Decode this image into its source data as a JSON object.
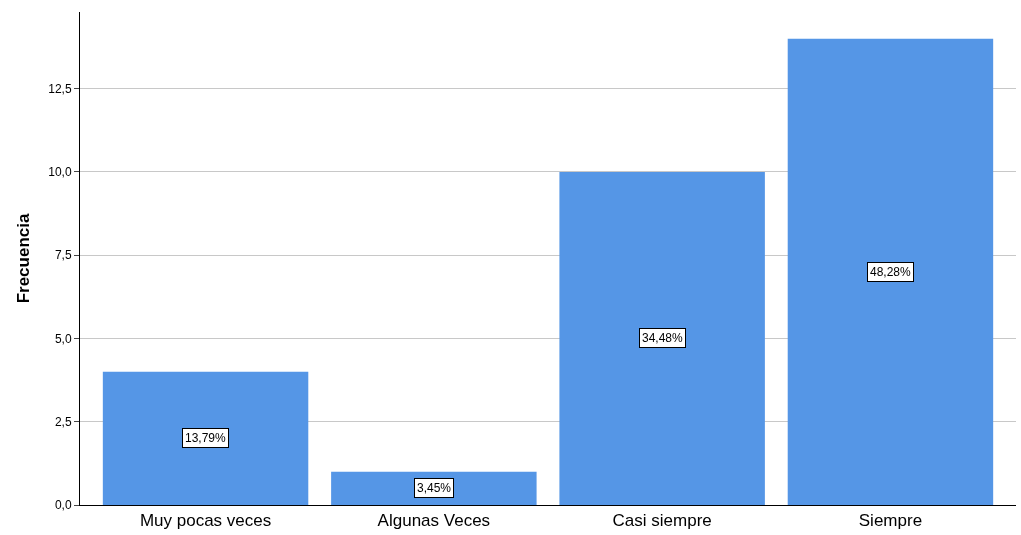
{
  "chart_data": {
    "type": "bar",
    "ylabel": "Frecuencia",
    "categories": [
      "Muy pocas veces",
      "Algunas Veces",
      "Casi siempre",
      "Siempre"
    ],
    "values": [
      4,
      1,
      10,
      14
    ],
    "annotations": [
      "13,79%",
      "3,45%",
      "34,48%",
      "48,28%"
    ],
    "color": "#5596e6",
    "ylim": [
      0,
      14.8
    ],
    "yticks": [
      {
        "value": 0,
        "label": "0,0"
      },
      {
        "value": 2.5,
        "label": "2,5"
      },
      {
        "value": 5,
        "label": "5,0"
      },
      {
        "value": 7.5,
        "label": "7,5"
      },
      {
        "value": 10,
        "label": "10,0"
      },
      {
        "value": 12.5,
        "label": "12,5"
      }
    ],
    "grid": "y",
    "legend": false
  }
}
